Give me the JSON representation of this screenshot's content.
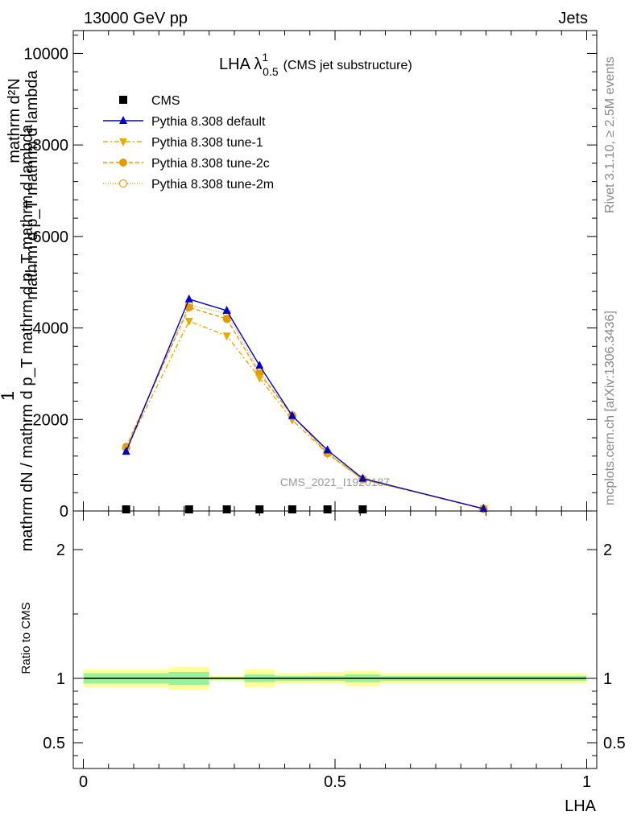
{
  "header": {
    "left": "13000 GeV pp",
    "right": "Jets"
  },
  "side_labels": {
    "rivet": "Rivet 3.1.10, ≥ 2.5M events",
    "mcplots": "mcplots.cern.ch [arXiv:1306.3436]"
  },
  "title": {
    "main": "LHA λ",
    "sup": "1",
    "sub": "0.5",
    "rest": "(CMS jet substructure)"
  },
  "watermark": "CMS_2021_I1920187",
  "y_label_upper": {
    "one": "1",
    "line1": "mathrm dN / mathrm d p_T mathrm d p_T mathrm d lambda",
    "num": "mathrm d²N",
    "den_part": "mathrm d p_T mathrm d lambda"
  },
  "ratio_ylabel": "Ratio to CMS",
  "xlabel": "LHA",
  "legend": [
    {
      "name": "CMS",
      "color": "#000000",
      "marker": "square",
      "dash": ""
    },
    {
      "name": "Pythia 8.308 default",
      "color": "#0000cc",
      "marker": "triangle-up",
      "dash": ""
    },
    {
      "name": "Pythia 8.308 tune-1",
      "color": "#e6ac00",
      "marker": "triangle-down",
      "dash": "6,3,2,3"
    },
    {
      "name": "Pythia 8.308 tune-2c",
      "color": "#e69a00",
      "marker": "circle",
      "dash": "5,3"
    },
    {
      "name": "Pythia 8.308 tune-2m",
      "color": "#e6a020",
      "marker": "circle-open",
      "dash": "1,2"
    }
  ],
  "chart_data": {
    "type": "line",
    "x": [
      0.085,
      0.21,
      0.285,
      0.35,
      0.415,
      0.485,
      0.555,
      0.795
    ],
    "xlim": [
      -0.02,
      1.02
    ],
    "ylim": [
      0,
      10500
    ],
    "yticks": [
      0,
      2000,
      4000,
      6000,
      8000,
      10000
    ],
    "yticklabels": [
      "0",
      "2000",
      "4000",
      "6000",
      "8000",
      "10000"
    ],
    "xticks": [
      0,
      0.5,
      1
    ],
    "xticklabels": [
      "0",
      "0.5",
      "1"
    ],
    "cms_points": {
      "x": [
        0.085,
        0.21,
        0.285,
        0.35,
        0.415,
        0.485,
        0.555
      ],
      "y": [
        0,
        0,
        0,
        0,
        0,
        0,
        0
      ]
    },
    "series": [
      {
        "name": "Pythia 8.308 default",
        "values": [
          1300,
          4630,
          4380,
          3180,
          2080,
          1330,
          710,
          50
        ]
      },
      {
        "name": "Pythia 8.308 tune-1",
        "values": [
          1350,
          4150,
          3830,
          2910,
          1990,
          1250,
          690,
          50
        ]
      },
      {
        "name": "Pythia 8.308 tune-2c",
        "values": [
          1400,
          4450,
          4200,
          3000,
          2090,
          1260,
          690,
          50
        ]
      },
      {
        "name": "Pythia 8.308 tune-2m",
        "values": [
          1380,
          4500,
          4320,
          3050,
          2070,
          1280,
          700,
          50
        ]
      }
    ],
    "ratio": {
      "ylim": [
        0.3,
        2.3
      ],
      "yticks": [
        0.5,
        1,
        2
      ],
      "yticklabels": [
        "0.5",
        "1",
        "2"
      ],
      "bands": [
        {
          "x0": 0.0,
          "x1": 0.17,
          "green": [
            0.96,
            1.04
          ],
          "yellow": [
            0.93,
            1.07
          ]
        },
        {
          "x0": 0.17,
          "x1": 0.25,
          "green": [
            0.95,
            1.05
          ],
          "yellow": [
            0.91,
            1.09
          ]
        },
        {
          "x0": 0.25,
          "x1": 0.32,
          "green": [
            0.99,
            1.01
          ],
          "yellow": [
            0.98,
            1.02
          ]
        },
        {
          "x0": 0.32,
          "x1": 0.38,
          "green": [
            0.97,
            1.03
          ],
          "yellow": [
            0.93,
            1.07
          ]
        },
        {
          "x0": 0.38,
          "x1": 0.45,
          "green": [
            0.98,
            1.02
          ],
          "yellow": [
            0.96,
            1.04
          ]
        },
        {
          "x0": 0.45,
          "x1": 0.52,
          "green": [
            0.98,
            1.02
          ],
          "yellow": [
            0.96,
            1.05
          ]
        },
        {
          "x0": 0.52,
          "x1": 0.59,
          "green": [
            0.97,
            1.03
          ],
          "yellow": [
            0.94,
            1.06
          ]
        },
        {
          "x0": 0.59,
          "x1": 1.0,
          "green": [
            0.98,
            1.02
          ],
          "yellow": [
            0.96,
            1.04
          ]
        }
      ]
    }
  },
  "colors": {
    "green_band": "#99f299",
    "yellow_band": "#ffff99"
  }
}
